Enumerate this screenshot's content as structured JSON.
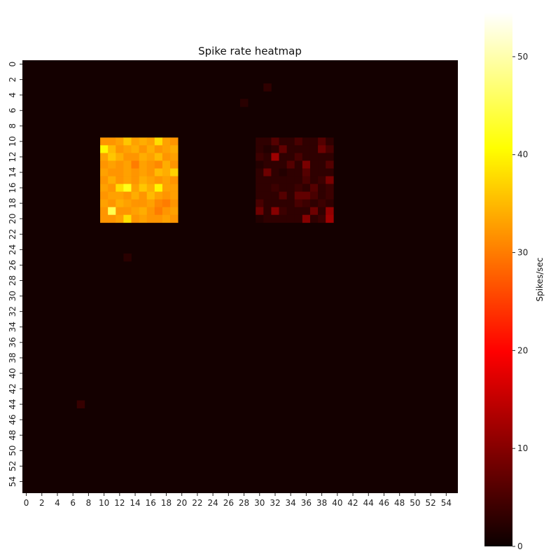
{
  "chart_data": {
    "type": "heatmap",
    "title": "Spike rate heatmap",
    "xlabel": "",
    "ylabel": "",
    "grid_size": 56,
    "x_ticks": [
      0,
      2,
      4,
      6,
      8,
      10,
      12,
      14,
      16,
      18,
      20,
      22,
      24,
      26,
      28,
      30,
      32,
      34,
      36,
      38,
      40,
      42,
      44,
      46,
      48,
      50,
      52,
      54
    ],
    "y_ticks": [
      0,
      2,
      4,
      6,
      8,
      10,
      12,
      14,
      16,
      18,
      20,
      22,
      24,
      26,
      28,
      30,
      32,
      34,
      36,
      38,
      40,
      42,
      44,
      46,
      48,
      50,
      52,
      54
    ],
    "colormap": "hot",
    "colors": {
      "background_cell": "#140000"
    },
    "colorbar": {
      "label": "Spikes/sec",
      "vmin": 0,
      "vmax": 54.5,
      "ticks": [
        0,
        10,
        20,
        30,
        40,
        50
      ]
    },
    "baseline_value": 0.6,
    "active_regions": [
      {
        "name": "left block",
        "rows": [
          10,
          20
        ],
        "cols": [
          10,
          19
        ],
        "values": [
          [
            32,
            32,
            33,
            36,
            33,
            34,
            33,
            38,
            33,
            32
          ],
          [
            40,
            35,
            32,
            33,
            34,
            32,
            34,
            32,
            33,
            34
          ],
          [
            33,
            36,
            34,
            32,
            32,
            34,
            33,
            35,
            32,
            33
          ],
          [
            32,
            33,
            32,
            33,
            30,
            33,
            32,
            31,
            34,
            32
          ],
          [
            33,
            32,
            32,
            33,
            32,
            33,
            32,
            35,
            34,
            37
          ],
          [
            32,
            34,
            32,
            33,
            32,
            34,
            33,
            32,
            33,
            32
          ],
          [
            33,
            32,
            38,
            42,
            33,
            36,
            34,
            40,
            33,
            33
          ],
          [
            32,
            33,
            33,
            32,
            34,
            32,
            35,
            33,
            32,
            33
          ],
          [
            33,
            32,
            34,
            33,
            32,
            32,
            33,
            31,
            30,
            32
          ],
          [
            32,
            45,
            32,
            32,
            33,
            34,
            32,
            30,
            32,
            33
          ],
          [
            32,
            32,
            33,
            38,
            32,
            33,
            32,
            32,
            33,
            32
          ]
        ]
      },
      {
        "name": "right block",
        "rows": [
          10,
          20
        ],
        "cols": [
          30,
          39
        ],
        "values": [
          [
            3,
            3,
            6,
            3,
            3,
            5,
            3,
            3,
            6,
            3
          ],
          [
            3,
            2,
            3,
            7,
            3,
            3,
            3,
            3,
            8,
            5
          ],
          [
            4,
            3,
            12,
            3,
            3,
            5,
            3,
            3,
            3,
            3
          ],
          [
            2,
            3,
            3,
            3,
            6,
            3,
            9,
            3,
            3,
            6
          ],
          [
            3,
            8,
            3,
            2,
            3,
            3,
            6,
            3,
            3,
            3
          ],
          [
            3,
            3,
            3,
            3,
            3,
            3,
            5,
            3,
            4,
            9
          ],
          [
            3,
            3,
            4,
            3,
            3,
            4,
            3,
            6,
            3,
            4
          ],
          [
            3,
            3,
            3,
            6,
            3,
            7,
            7,
            5,
            3,
            4
          ],
          [
            5,
            3,
            3,
            3,
            3,
            5,
            4,
            3,
            4,
            3
          ],
          [
            8,
            3,
            10,
            4,
            3,
            3,
            3,
            8,
            3,
            11
          ],
          [
            2,
            3,
            3,
            3,
            3,
            3,
            10,
            3,
            4,
            12
          ]
        ]
      }
    ],
    "isolated_cells": [
      {
        "row": 3,
        "col": 31,
        "value": 3
      },
      {
        "row": 5,
        "col": 28,
        "value": 2.5
      },
      {
        "row": 25,
        "col": 13,
        "value": 2.5
      },
      {
        "row": 44,
        "col": 7,
        "value": 3.5
      }
    ]
  }
}
